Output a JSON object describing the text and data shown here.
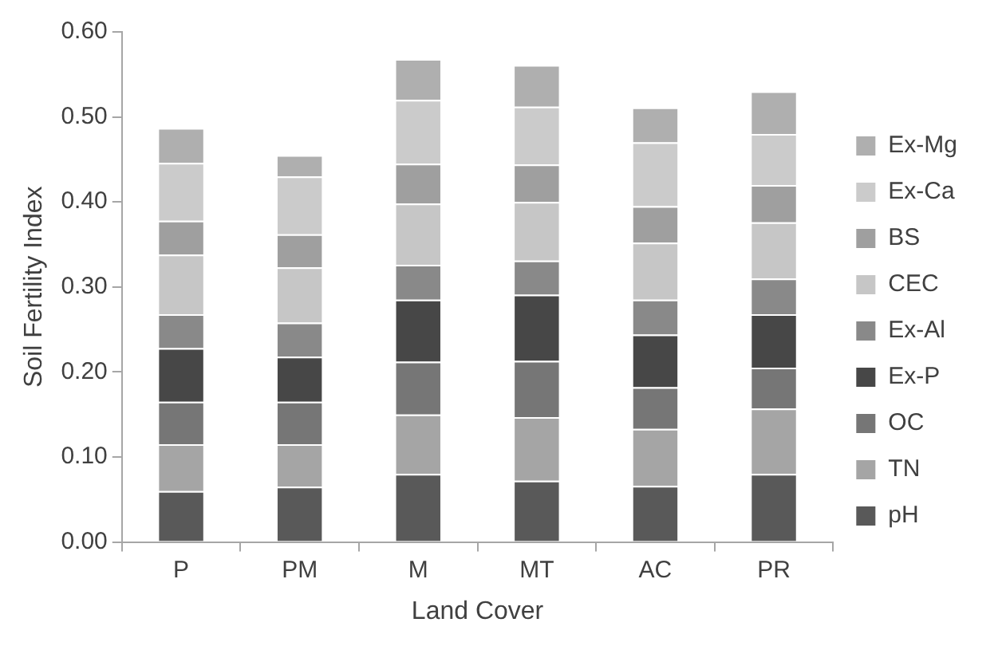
{
  "chart_data": {
    "type": "bar",
    "xlabel": "Land Cover",
    "ylabel": "Soil Fertility Index",
    "categories": [
      "P",
      "PM",
      "M",
      "MT",
      "AC",
      "PR"
    ],
    "stacked": true,
    "legend": "right",
    "grid": false,
    "ylim": [
      0,
      0.6
    ],
    "yticks": [
      {
        "value": 0,
        "label": "0.00"
      },
      {
        "value": 0.1,
        "label": "0.10"
      },
      {
        "value": 0.2,
        "label": "0.20"
      },
      {
        "value": 0.3,
        "label": "0.30"
      },
      {
        "value": 0.4,
        "label": "0.40"
      },
      {
        "value": 0.5,
        "label": "0.50"
      },
      {
        "value": 0.6,
        "label": "0.60"
      }
    ],
    "series": [
      {
        "name": "pH",
        "color": "#595959",
        "values": [
          0.06,
          0.065,
          0.08,
          0.072,
          0.066,
          0.08
        ]
      },
      {
        "name": "TN",
        "color": "#a5a5a5",
        "values": [
          0.055,
          0.05,
          0.07,
          0.075,
          0.067,
          0.077
        ]
      },
      {
        "name": "OC",
        "color": "#767676",
        "values": [
          0.05,
          0.05,
          0.062,
          0.066,
          0.049,
          0.048
        ]
      },
      {
        "name": "Ex-P",
        "color": "#474747",
        "values": [
          0.063,
          0.053,
          0.073,
          0.078,
          0.062,
          0.063
        ]
      },
      {
        "name": "Ex-Al",
        "color": "#898989",
        "values": [
          0.04,
          0.04,
          0.041,
          0.04,
          0.041,
          0.042
        ]
      },
      {
        "name": "CEC",
        "color": "#c6c6c6",
        "values": [
          0.07,
          0.065,
          0.072,
          0.069,
          0.067,
          0.066
        ]
      },
      {
        "name": "BS",
        "color": "#9f9f9f",
        "values": [
          0.04,
          0.039,
          0.047,
          0.044,
          0.043,
          0.044
        ]
      },
      {
        "name": "Ex-Ca",
        "color": "#cbcbcb",
        "values": [
          0.068,
          0.068,
          0.075,
          0.068,
          0.075,
          0.06
        ]
      },
      {
        "name": "Ex-Mg",
        "color": "#afafaf",
        "values": [
          0.041,
          0.025,
          0.048,
          0.049,
          0.041,
          0.05
        ]
      }
    ]
  }
}
